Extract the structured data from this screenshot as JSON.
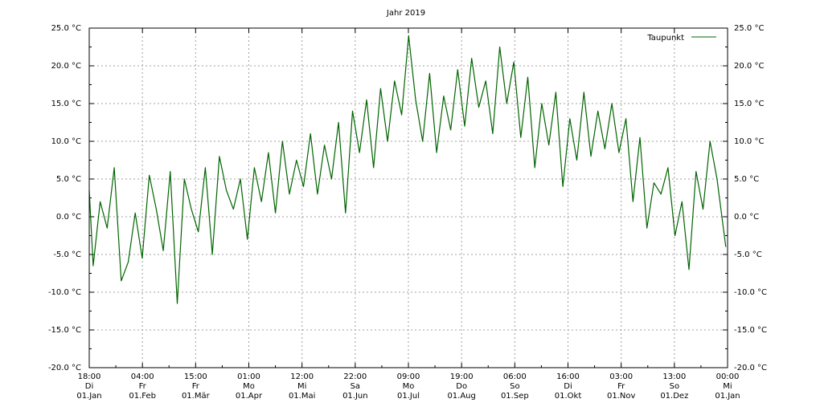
{
  "chart_data": {
    "type": "line",
    "title": "Jahr 2019",
    "xlabel": "",
    "ylabel": "",
    "ylim": [
      -20,
      25
    ],
    "xlim": [
      "2019-01-01T18:00",
      "2020-01-01T00:00"
    ],
    "grid": true,
    "legend_position": "top-right",
    "y_ticks": [
      "25.0 °C",
      "20.0 °C",
      "15.0 °C",
      "10.0 °C",
      "5.0 °C",
      "0.0 °C",
      "-5.0 °C",
      "-10.0 °C",
      "-15.0 °C",
      "-20.0 °C"
    ],
    "y_tick_values": [
      25,
      20,
      15,
      10,
      5,
      0,
      -5,
      -10,
      -15,
      -20
    ],
    "x_ticks": [
      {
        "time": "18:00",
        "day": "Di",
        "date": "01.Jan"
      },
      {
        "time": "04:00",
        "day": "Fr",
        "date": "01.Feb"
      },
      {
        "time": "15:00",
        "day": "Fr",
        "date": "01.Mär"
      },
      {
        "time": "01:00",
        "day": "Mo",
        "date": "01.Apr"
      },
      {
        "time": "12:00",
        "day": "Mi",
        "date": "01.Mai"
      },
      {
        "time": "22:00",
        "day": "Sa",
        "date": "01.Jun"
      },
      {
        "time": "09:00",
        "day": "Mo",
        "date": "01.Jul"
      },
      {
        "time": "19:00",
        "day": "Do",
        "date": "01.Aug"
      },
      {
        "time": "06:00",
        "day": "So",
        "date": "01.Sep"
      },
      {
        "time": "16:00",
        "day": "Di",
        "date": "01.Okt"
      },
      {
        "time": "03:00",
        "day": "Fr",
        "date": "01.Nov"
      },
      {
        "time": "13:00",
        "day": "So",
        "date": "01.Dez"
      },
      {
        "time": "00:00",
        "day": "Mi",
        "date": "01.Jan"
      }
    ],
    "series": [
      {
        "name": "Taupunkt",
        "color": "#006400",
        "x": [
          "2019-01-01",
          "2019-01-04",
          "2019-01-08",
          "2019-01-12",
          "2019-01-16",
          "2019-01-20",
          "2019-01-24",
          "2019-01-28",
          "2019-02-01",
          "2019-02-05",
          "2019-02-09",
          "2019-02-13",
          "2019-02-17",
          "2019-02-21",
          "2019-02-25",
          "2019-03-01",
          "2019-03-05",
          "2019-03-09",
          "2019-03-13",
          "2019-03-17",
          "2019-03-21",
          "2019-03-25",
          "2019-03-29",
          "2019-04-02",
          "2019-04-06",
          "2019-04-10",
          "2019-04-14",
          "2019-04-18",
          "2019-04-22",
          "2019-04-26",
          "2019-04-30",
          "2019-05-04",
          "2019-05-08",
          "2019-05-12",
          "2019-05-16",
          "2019-05-20",
          "2019-05-24",
          "2019-05-28",
          "2019-06-01",
          "2019-06-05",
          "2019-06-09",
          "2019-06-13",
          "2019-06-17",
          "2019-06-21",
          "2019-06-25",
          "2019-06-29",
          "2019-07-03",
          "2019-07-07",
          "2019-07-11",
          "2019-07-15",
          "2019-07-19",
          "2019-07-23",
          "2019-07-27",
          "2019-07-31",
          "2019-08-04",
          "2019-08-08",
          "2019-08-12",
          "2019-08-16",
          "2019-08-20",
          "2019-08-24",
          "2019-08-28",
          "2019-09-01",
          "2019-09-05",
          "2019-09-09",
          "2019-09-13",
          "2019-09-17",
          "2019-09-21",
          "2019-09-25",
          "2019-09-29",
          "2019-10-03",
          "2019-10-07",
          "2019-10-11",
          "2019-10-15",
          "2019-10-19",
          "2019-10-23",
          "2019-10-27",
          "2019-10-31",
          "2019-11-04",
          "2019-11-08",
          "2019-11-12",
          "2019-11-16",
          "2019-11-20",
          "2019-11-24",
          "2019-11-28",
          "2019-12-02",
          "2019-12-06",
          "2019-12-10",
          "2019-12-14",
          "2019-12-18",
          "2019-12-22",
          "2019-12-26",
          "2019-12-31"
        ],
        "y": [
          3.5,
          -6.5,
          2.0,
          -1.5,
          6.5,
          -8.5,
          -6.0,
          0.5,
          -5.5,
          5.5,
          1.0,
          -4.5,
          6.0,
          -11.5,
          5.0,
          1.0,
          -2.0,
          6.5,
          -5.0,
          8.0,
          3.5,
          1.0,
          5.0,
          -3.0,
          6.5,
          2.0,
          8.5,
          0.5,
          10.0,
          3.0,
          7.5,
          4.0,
          11.0,
          3.0,
          9.5,
          5.0,
          12.5,
          0.5,
          14.0,
          8.5,
          15.5,
          6.5,
          17.0,
          10.0,
          18.0,
          13.5,
          24.0,
          15.5,
          10.0,
          19.0,
          8.5,
          16.0,
          11.5,
          19.5,
          12.0,
          21.0,
          14.5,
          18.0,
          11.0,
          22.5,
          15.0,
          20.5,
          10.5,
          18.5,
          6.5,
          15.0,
          9.5,
          16.5,
          4.0,
          13.0,
          7.5,
          16.5,
          8.0,
          14.0,
          9.0,
          15.0,
          8.5,
          13.0,
          2.0,
          10.5,
          -1.5,
          4.5,
          3.0,
          6.5,
          -2.5,
          2.0,
          -7.0,
          6.0,
          1.0,
          10.0,
          5.0,
          -4.0
        ]
      }
    ]
  }
}
